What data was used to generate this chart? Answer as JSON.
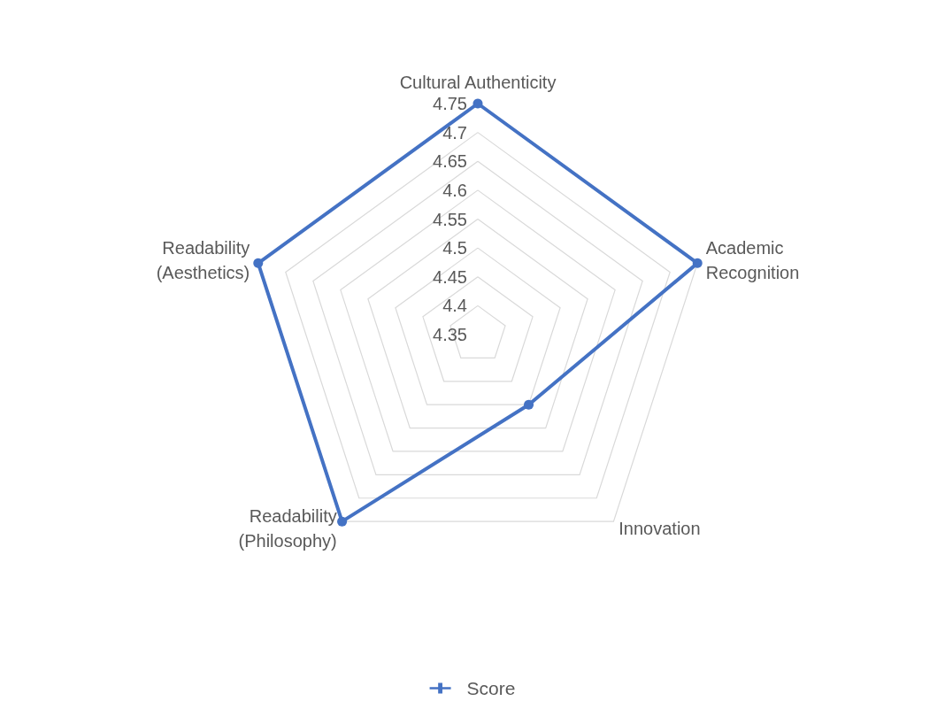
{
  "chart_data": {
    "type": "radar",
    "categories": [
      "Cultural Authenticity",
      "Academic Recognition",
      "Innovation",
      "Readability (Philosophy)",
      "Readability (Aesthetics)"
    ],
    "series": [
      {
        "name": "Score",
        "color": "#4472c4",
        "values": [
          4.75,
          4.75,
          4.5,
          4.75,
          4.75
        ]
      }
    ],
    "ylim": [
      4.35,
      4.75
    ],
    "yticks": [
      4.35,
      4.4,
      4.45,
      4.5,
      4.55,
      4.6,
      4.65,
      4.7,
      4.75
    ],
    "grid": true,
    "legend": "bottom",
    "marker": "circle",
    "line_style": "solid"
  }
}
